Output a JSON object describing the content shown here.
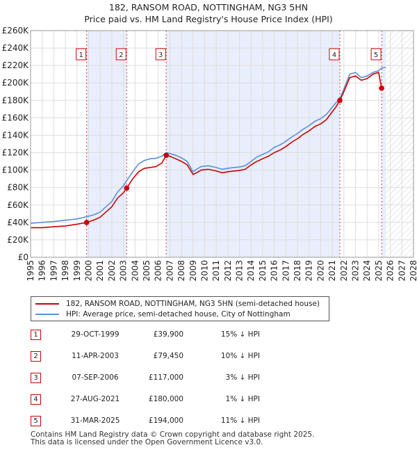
{
  "title": {
    "line1": "182, RANSOM ROAD, NOTTINGHAM, NG3 5HN",
    "line2": "Price paid vs. HM Land Registry's House Price Index (HPI)"
  },
  "chart_data": {
    "type": "line",
    "title": "182, RANSOM ROAD, NOTTINGHAM, NG3 5HN Price paid vs. HM Land Registry's House Price Index (HPI)",
    "xlabel": "",
    "ylabel": "",
    "xlim": [
      1995,
      2028
    ],
    "ylim": [
      0,
      260000
    ],
    "x_ticks": [
      "1995",
      "1996",
      "1997",
      "1998",
      "1999",
      "2000",
      "2001",
      "2002",
      "2003",
      "2004",
      "2005",
      "2006",
      "2007",
      "2008",
      "2009",
      "2010",
      "2011",
      "2012",
      "2013",
      "2014",
      "2015",
      "2016",
      "2017",
      "2018",
      "2019",
      "2020",
      "2021",
      "2022",
      "2023",
      "2024",
      "2025",
      "2026",
      "2027",
      "2028"
    ],
    "y_ticks": [
      {
        "value": 0,
        "label": "£0"
      },
      {
        "value": 20000,
        "label": "£20K"
      },
      {
        "value": 40000,
        "label": "£40K"
      },
      {
        "value": 60000,
        "label": "£60K"
      },
      {
        "value": 80000,
        "label": "£80K"
      },
      {
        "value": 100000,
        "label": "£100K"
      },
      {
        "value": 120000,
        "label": "£120K"
      },
      {
        "value": 140000,
        "label": "£140K"
      },
      {
        "value": 160000,
        "label": "£160K"
      },
      {
        "value": 180000,
        "label": "£180K"
      },
      {
        "value": 200000,
        "label": "£200K"
      },
      {
        "value": 220000,
        "label": "£220K"
      },
      {
        "value": 240000,
        "label": "£240K"
      },
      {
        "value": 260000,
        "label": "£260K"
      }
    ],
    "grid": true,
    "shaded_periods": [
      [
        1999.83,
        2003.28
      ],
      [
        2006.69,
        2021.65
      ],
      [
        2025.25,
        2025.6
      ]
    ],
    "hatched_future_from": 2025.6,
    "series": [
      {
        "name": "182, RANSOM ROAD, NOTTINGHAM, NG3 5HN (semi-detached house)",
        "color": "#cc0000",
        "x": [
          1995,
          1996,
          1997,
          1998,
          1999,
          1999.83,
          2000.5,
          2001,
          2001.5,
          2002,
          2002.5,
          2003,
          2003.28,
          2003.8,
          2004.3,
          2004.8,
          2005.3,
          2005.8,
          2006.3,
          2006.69,
          2007,
          2007.5,
          2008,
          2008.5,
          2009,
          2009.3,
          2009.7,
          2010.3,
          2011,
          2011.5,
          2012,
          2012.5,
          2013,
          2013.5,
          2014,
          2014.5,
          2015,
          2015.5,
          2016,
          2016.5,
          2017,
          2017.5,
          2018,
          2018.5,
          2019,
          2019.5,
          2020,
          2020.5,
          2021,
          2021.3,
          2021.65,
          2022,
          2022.5,
          2023,
          2023.5,
          2024,
          2024.5,
          2025,
          2025.25
        ],
        "values": [
          34000,
          34000,
          35000,
          36000,
          38000,
          39900,
          43000,
          46000,
          52000,
          58000,
          68000,
          74000,
          79450,
          90000,
          98000,
          102000,
          103000,
          104000,
          108000,
          117000,
          116000,
          113000,
          110000,
          106000,
          95000,
          97000,
          100000,
          101000,
          99000,
          97000,
          98000,
          99000,
          99500,
          101000,
          106000,
          110000,
          113000,
          116000,
          120000,
          123000,
          127000,
          132000,
          136000,
          141000,
          145000,
          150000,
          153000,
          158000,
          167000,
          172000,
          180000,
          190000,
          206000,
          208000,
          203000,
          205000,
          210000,
          212000,
          194000
        ]
      },
      {
        "name": "HPI: Average price, semi-detached house, City of Nottingham",
        "color": "#5b8fd6",
        "x": [
          1995,
          1996,
          1997,
          1998,
          1999,
          1999.83,
          2000.5,
          2001,
          2001.5,
          2002,
          2002.5,
          2003,
          2003.28,
          2003.8,
          2004.3,
          2004.8,
          2005.3,
          2005.8,
          2006.3,
          2006.69,
          2007,
          2007.5,
          2008,
          2008.5,
          2009,
          2009.3,
          2009.7,
          2010.3,
          2011,
          2011.5,
          2012,
          2012.5,
          2013,
          2013.5,
          2014,
          2014.5,
          2015,
          2015.5,
          2016,
          2016.5,
          2017,
          2017.5,
          2018,
          2018.5,
          2019,
          2019.5,
          2020,
          2020.5,
          2021,
          2021.3,
          2021.65,
          2022,
          2022.5,
          2023,
          2023.5,
          2024,
          2024.5,
          2025,
          2025.25,
          2025.6
        ],
        "values": [
          39000,
          40000,
          41000,
          42500,
          44000,
          46500,
          49000,
          52000,
          58000,
          64000,
          75000,
          82000,
          88000,
          98000,
          107000,
          111000,
          113000,
          113500,
          116000,
          120000,
          119000,
          117000,
          114000,
          110000,
          98000,
          101000,
          104000,
          105000,
          103000,
          101000,
          102000,
          103000,
          103500,
          105000,
          110000,
          115000,
          118000,
          121000,
          126000,
          129000,
          133000,
          138000,
          142000,
          147000,
          151000,
          156000,
          159000,
          164000,
          172000,
          177000,
          182000,
          193000,
          210000,
          212000,
          206000,
          208000,
          212000,
          214000,
          217000,
          218000
        ]
      }
    ],
    "sales": [
      {
        "num": "1",
        "x": 1999.83,
        "value": 39900
      },
      {
        "num": "2",
        "x": 2003.28,
        "value": 79450
      },
      {
        "num": "3",
        "x": 2006.69,
        "value": 117000
      },
      {
        "num": "4",
        "x": 2021.65,
        "value": 180000
      },
      {
        "num": "5",
        "x": 2025.25,
        "value": 194000
      }
    ]
  },
  "legend": {
    "items": [
      {
        "label": "182, RANSOM ROAD, NOTTINGHAM, NG3 5HN (semi-detached house)",
        "color": "#cc0000"
      },
      {
        "label": "HPI: Average price, semi-detached house, City of Nottingham",
        "color": "#5b8fd6"
      }
    ]
  },
  "sales_table": [
    {
      "num": "1",
      "date": "29-OCT-1999",
      "price": "£39,900",
      "hpi": "15% ↓ HPI"
    },
    {
      "num": "2",
      "date": "11-APR-2003",
      "price": "£79,450",
      "hpi": "10% ↓ HPI"
    },
    {
      "num": "3",
      "date": "07-SEP-2006",
      "price": "£117,000",
      "hpi": "3% ↓ HPI"
    },
    {
      "num": "4",
      "date": "27-AUG-2021",
      "price": "£180,000",
      "hpi": "1% ↓ HPI"
    },
    {
      "num": "5",
      "date": "31-MAR-2025",
      "price": "£194,000",
      "hpi": "11% ↓ HPI"
    }
  ],
  "footer": {
    "line1": "Contains HM Land Registry data © Crown copyright and database right 2025.",
    "line2": "This data is licensed under the Open Government Licence v3.0."
  }
}
